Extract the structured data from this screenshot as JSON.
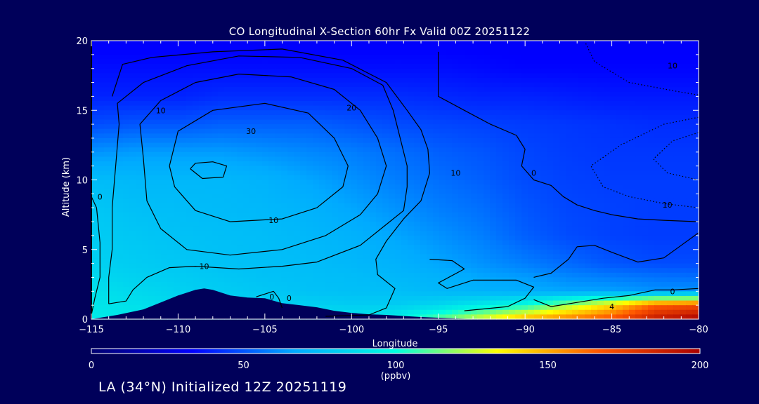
{
  "chart_data": {
    "type": "heatmap",
    "title": "CO Longitudinal X-Section 60hr  Fx Valid 00Z 20251122",
    "xlabel": "Longitude",
    "ylabel": "Altitude (km)",
    "xlim": [
      -115,
      -80
    ],
    "ylim": [
      0,
      20
    ],
    "x_ticks": [
      -115,
      -110,
      -105,
      -100,
      -95,
      -90,
      -85,
      -80
    ],
    "x_tick_labels": [
      "−115",
      "−110",
      "−105",
      "−100",
      "−95",
      "−90",
      "−85",
      "−80"
    ],
    "y_ticks": [
      0,
      5,
      10,
      15,
      20
    ],
    "y_tick_labels": [
      "0",
      "5",
      "10",
      "15",
      "20"
    ],
    "grid": false,
    "colorbar": {
      "label": "(ppbv)",
      "range": [
        0,
        200
      ],
      "ticks": [
        0,
        50,
        100,
        150,
        200
      ],
      "tick_labels": [
        "0",
        "50",
        "100",
        "150",
        "200"
      ],
      "colors": [
        "#00006e",
        "#0000ff",
        "#00aaff",
        "#00ffe0",
        "#ffff00",
        "#ff5500",
        "#aa0000"
      ]
    },
    "x": [
      -115,
      -112.5,
      -110,
      -107.5,
      -105,
      -102.5,
      -100,
      -97.5,
      -95,
      -92.5,
      -90,
      -87.5,
      -85,
      -82.5,
      -80
    ],
    "y": [
      0,
      1,
      2,
      3,
      4,
      6,
      8,
      10,
      12,
      14,
      16,
      18,
      20
    ],
    "co_ppbv": [
      [
        92,
        92,
        92,
        92,
        90,
        90,
        92,
        96,
        112,
        130,
        150,
        160,
        170,
        190,
        200
      ],
      [
        90,
        88,
        86,
        85,
        82,
        82,
        80,
        80,
        84,
        92,
        100,
        120,
        140,
        165,
        170
      ],
      [
        88,
        85,
        82,
        80,
        78,
        76,
        75,
        75,
        72,
        70,
        68,
        66,
        65,
        62,
        62
      ],
      [
        85,
        82,
        80,
        78,
        76,
        75,
        74,
        72,
        70,
        66,
        64,
        60,
        58,
        56,
        55
      ],
      [
        82,
        80,
        78,
        76,
        75,
        74,
        72,
        70,
        66,
        62,
        58,
        54,
        50,
        48,
        48
      ],
      [
        80,
        78,
        76,
        75,
        74,
        72,
        70,
        66,
        62,
        58,
        52,
        48,
        46,
        45,
        45
      ],
      [
        78,
        75,
        74,
        73,
        72,
        70,
        66,
        62,
        58,
        55,
        50,
        47,
        46,
        45,
        45
      ],
      [
        74,
        72,
        72,
        72,
        70,
        66,
        62,
        58,
        55,
        52,
        48,
        46,
        45,
        45,
        45
      ],
      [
        62,
        64,
        64,
        64,
        62,
        60,
        58,
        55,
        52,
        50,
        47,
        45,
        44,
        44,
        44
      ],
      [
        48,
        50,
        50,
        52,
        52,
        52,
        50,
        48,
        47,
        46,
        45,
        44,
        43,
        42,
        42
      ],
      [
        40,
        40,
        40,
        42,
        42,
        42,
        42,
        42,
        41,
        40,
        40,
        39,
        38,
        38,
        38
      ],
      [
        36,
        36,
        36,
        36,
        36,
        36,
        36,
        36,
        36,
        35,
        34,
        34,
        34,
        34,
        34
      ],
      [
        32,
        32,
        32,
        32,
        32,
        32,
        32,
        32,
        32,
        32,
        32,
        32,
        32,
        32,
        32
      ]
    ],
    "terrain": {
      "x": [
        -115,
        -113.5,
        -112,
        -111,
        -110,
        -109,
        -108.5,
        -108,
        -107,
        -106,
        -105,
        -104,
        -103,
        -102,
        -101,
        -100,
        -99,
        -98,
        -96,
        -94,
        -92.5
      ],
      "altitude_km": [
        0,
        0.3,
        0.7,
        1.2,
        1.7,
        2.1,
        2.2,
        2.1,
        1.7,
        1.55,
        1.5,
        1.15,
        1.0,
        0.85,
        0.6,
        0.45,
        0.35,
        0.3,
        0.15,
        0.05,
        0
      ]
    },
    "contours": [
      {
        "label": "0",
        "style": "solid",
        "points": [
          [
            -115,
            0.3
          ],
          [
            -114.8,
            1.5
          ],
          [
            -114.5,
            3
          ],
          [
            -114.5,
            5.5
          ],
          [
            -114.7,
            8
          ],
          [
            -115,
            8.8
          ]
        ]
      },
      {
        "label": "0",
        "style": "solid",
        "points": [
          [
            -104,
            0.8
          ],
          [
            -104.2,
            1.5
          ],
          [
            -104.5,
            2
          ],
          [
            -105.5,
            1.6
          ]
        ]
      },
      {
        "label": "0",
        "style": "solid",
        "points": [
          [
            -101.5,
            0.2
          ],
          [
            -99,
            0.3
          ],
          [
            -98,
            0.8
          ],
          [
            -97.5,
            2.2
          ],
          [
            -98.5,
            3.2
          ],
          [
            -98.6,
            4.3
          ],
          [
            -98,
            5.6
          ],
          [
            -97,
            7.2
          ],
          [
            -96,
            8.5
          ],
          [
            -95.5,
            10.5
          ],
          [
            -95.6,
            12.2
          ],
          [
            -96,
            13.6
          ],
          [
            -96.8,
            15
          ],
          [
            -98,
            17
          ],
          [
            -100.5,
            18.6
          ],
          [
            -104,
            19.4
          ],
          [
            -108,
            19.2
          ],
          [
            -111.5,
            18.8
          ],
          [
            -113.2,
            18.3
          ],
          [
            -113.8,
            16
          ]
        ]
      },
      {
        "label": "0",
        "style": "solid",
        "points": [
          [
            -93.5,
            0.6
          ],
          [
            -91,
            0.9
          ],
          [
            -90,
            1.5
          ],
          [
            -89.5,
            2.3
          ],
          [
            -90.5,
            2.8
          ],
          [
            -93,
            2.8
          ],
          [
            -94.5,
            2.2
          ],
          [
            -95,
            2.6
          ],
          [
            -93.5,
            3.6
          ],
          [
            -94.2,
            4.2
          ],
          [
            -95.5,
            4.3
          ]
        ]
      },
      {
        "label": "0",
        "style": "solid",
        "points": [
          [
            -95,
            19.2
          ],
          [
            -95,
            16
          ],
          [
            -93.5,
            15
          ],
          [
            -92,
            14
          ],
          [
            -90.5,
            13.2
          ],
          [
            -90,
            12.2
          ],
          [
            -90.2,
            11
          ],
          [
            -89.5,
            10
          ],
          [
            -88.5,
            9.6
          ],
          [
            -87.8,
            8.8
          ],
          [
            -87,
            8.2
          ],
          [
            -86,
            7.8
          ],
          [
            -85,
            7.5
          ],
          [
            -83.5,
            7.2
          ],
          [
            -82,
            7.1
          ],
          [
            -80,
            7
          ]
        ]
      },
      {
        "label": "0",
        "style": "solid",
        "points": [
          [
            -80,
            6.2
          ],
          [
            -81,
            5.3
          ],
          [
            -82,
            4.4
          ],
          [
            -83.5,
            4.1
          ],
          [
            -85,
            4.8
          ],
          [
            -86,
            5.3
          ],
          [
            -87,
            5.2
          ],
          [
            -87.5,
            4.3
          ],
          [
            -88.5,
            3.3
          ],
          [
            -89.5,
            3.0
          ]
        ]
      },
      {
        "label": "0",
        "style": "solid",
        "points": [
          [
            -80,
            2.2
          ],
          [
            -81.5,
            2.1
          ],
          [
            -82.5,
            2.1
          ],
          [
            -84,
            1.7
          ],
          [
            -85.5,
            1.5
          ],
          [
            -87,
            1.2
          ],
          [
            -88.5,
            0.9
          ],
          [
            -89.5,
            1.4
          ]
        ]
      },
      {
        "label": "10",
        "style": "solid",
        "points": [
          [
            -114,
            1.1
          ],
          [
            -114,
            3
          ],
          [
            -113.8,
            5
          ],
          [
            -113.8,
            8
          ],
          [
            -113.6,
            11
          ],
          [
            -113.4,
            14
          ],
          [
            -113.5,
            15.5
          ],
          [
            -112,
            17
          ],
          [
            -109.5,
            18.2
          ],
          [
            -106.5,
            18.9
          ],
          [
            -103,
            18.8
          ],
          [
            -100,
            18
          ],
          [
            -98.2,
            16.8
          ],
          [
            -97.6,
            15
          ],
          [
            -97.2,
            13
          ],
          [
            -96.8,
            11
          ],
          [
            -96.8,
            9.5
          ],
          [
            -97,
            7.8
          ],
          [
            -98,
            6.8
          ],
          [
            -99.5,
            5.3
          ],
          [
            -102,
            4.1
          ],
          [
            -104,
            3.8
          ],
          [
            -106.5,
            3.6
          ],
          [
            -109,
            3.8
          ],
          [
            -110.5,
            3.7
          ],
          [
            -111.8,
            3
          ],
          [
            -112.6,
            2.1
          ],
          [
            -113,
            1.3
          ],
          [
            -114,
            1.1
          ]
        ]
      },
      {
        "label": "20",
        "style": "solid",
        "points": [
          [
            -112,
            11.5
          ],
          [
            -112.2,
            14
          ],
          [
            -111,
            15.7
          ],
          [
            -109,
            17
          ],
          [
            -106.5,
            17.6
          ],
          [
            -103.5,
            17.4
          ],
          [
            -101,
            16.5
          ],
          [
            -99.5,
            15
          ],
          [
            -98.5,
            13
          ],
          [
            -98,
            11
          ],
          [
            -98.5,
            9
          ],
          [
            -99.5,
            7.5
          ],
          [
            -101.5,
            6
          ],
          [
            -104,
            5
          ],
          [
            -107,
            4.6
          ],
          [
            -109.5,
            5
          ],
          [
            -111,
            6.5
          ],
          [
            -111.8,
            8.5
          ],
          [
            -112,
            11.5
          ]
        ]
      },
      {
        "label": "30",
        "style": "solid",
        "points": [
          [
            -110.5,
            11
          ],
          [
            -110,
            13.5
          ],
          [
            -108,
            15
          ],
          [
            -105,
            15.5
          ],
          [
            -102.5,
            14.8
          ],
          [
            -101,
            13
          ],
          [
            -100.2,
            11
          ],
          [
            -100.5,
            9.5
          ],
          [
            -102,
            8
          ],
          [
            -104,
            7.2
          ],
          [
            -107,
            7
          ],
          [
            -109,
            7.8
          ],
          [
            -110.2,
            9.5
          ],
          [
            -110.5,
            11
          ]
        ]
      },
      {
        "label": "",
        "style": "solid",
        "points": [
          [
            -109.3,
            10.8
          ],
          [
            -109,
            11.2
          ],
          [
            -108,
            11.3
          ],
          [
            -107.2,
            11
          ],
          [
            -107.4,
            10.2
          ],
          [
            -108.6,
            10.1
          ],
          [
            -109.3,
            10.8
          ]
        ]
      },
      {
        "label": "-10",
        "style": "dotted",
        "points": [
          [
            -86.5,
            19.8
          ],
          [
            -86,
            18.5
          ],
          [
            -84,
            17
          ],
          [
            -81,
            16.3
          ],
          [
            -80,
            16.1
          ]
        ]
      },
      {
        "label": "-10",
        "style": "dotted",
        "points": [
          [
            -80,
            14.5
          ],
          [
            -82,
            14
          ],
          [
            -84.5,
            12.5
          ],
          [
            -86.2,
            11
          ],
          [
            -85.5,
            9.5
          ],
          [
            -84,
            8.8
          ],
          [
            -82,
            8.3
          ],
          [
            -80,
            8
          ]
        ]
      },
      {
        "label": "",
        "style": "dotted",
        "points": [
          [
            -80,
            13.4
          ],
          [
            -81.5,
            12.8
          ],
          [
            -82.6,
            11.5
          ],
          [
            -81.8,
            10.5
          ],
          [
            -80,
            10
          ]
        ]
      }
    ],
    "contour_labels": [
      {
        "text": "20",
        "x": -100,
        "y": 15.2
      },
      {
        "text": "30",
        "x": -105.8,
        "y": 13.5
      },
      {
        "text": "10",
        "x": -108.5,
        "y": 3.8
      },
      {
        "text": "10",
        "x": -94,
        "y": 10.5
      },
      {
        "text": "0",
        "x": -89.5,
        "y": 10.5
      },
      {
        "text": "10",
        "x": -111,
        "y": 15.0
      },
      {
        "text": "10",
        "x": -81.8,
        "y": 8.2
      },
      {
        "text": "10",
        "x": -81.5,
        "y": 18.2
      },
      {
        "text": "0",
        "x": -114.5,
        "y": 8.8
      },
      {
        "text": "0",
        "x": -104.6,
        "y": 1.6
      },
      {
        "text": "0",
        "x": -103.6,
        "y": 1.5
      },
      {
        "text": "0",
        "x": -81.5,
        "y": 2.0
      },
      {
        "text": "4",
        "x": -85,
        "y": 0.9
      },
      {
        "text": "10",
        "x": -104.5,
        "y": 7.1
      }
    ]
  },
  "footer": "LA (34°N) Initialized 12Z 20251119"
}
